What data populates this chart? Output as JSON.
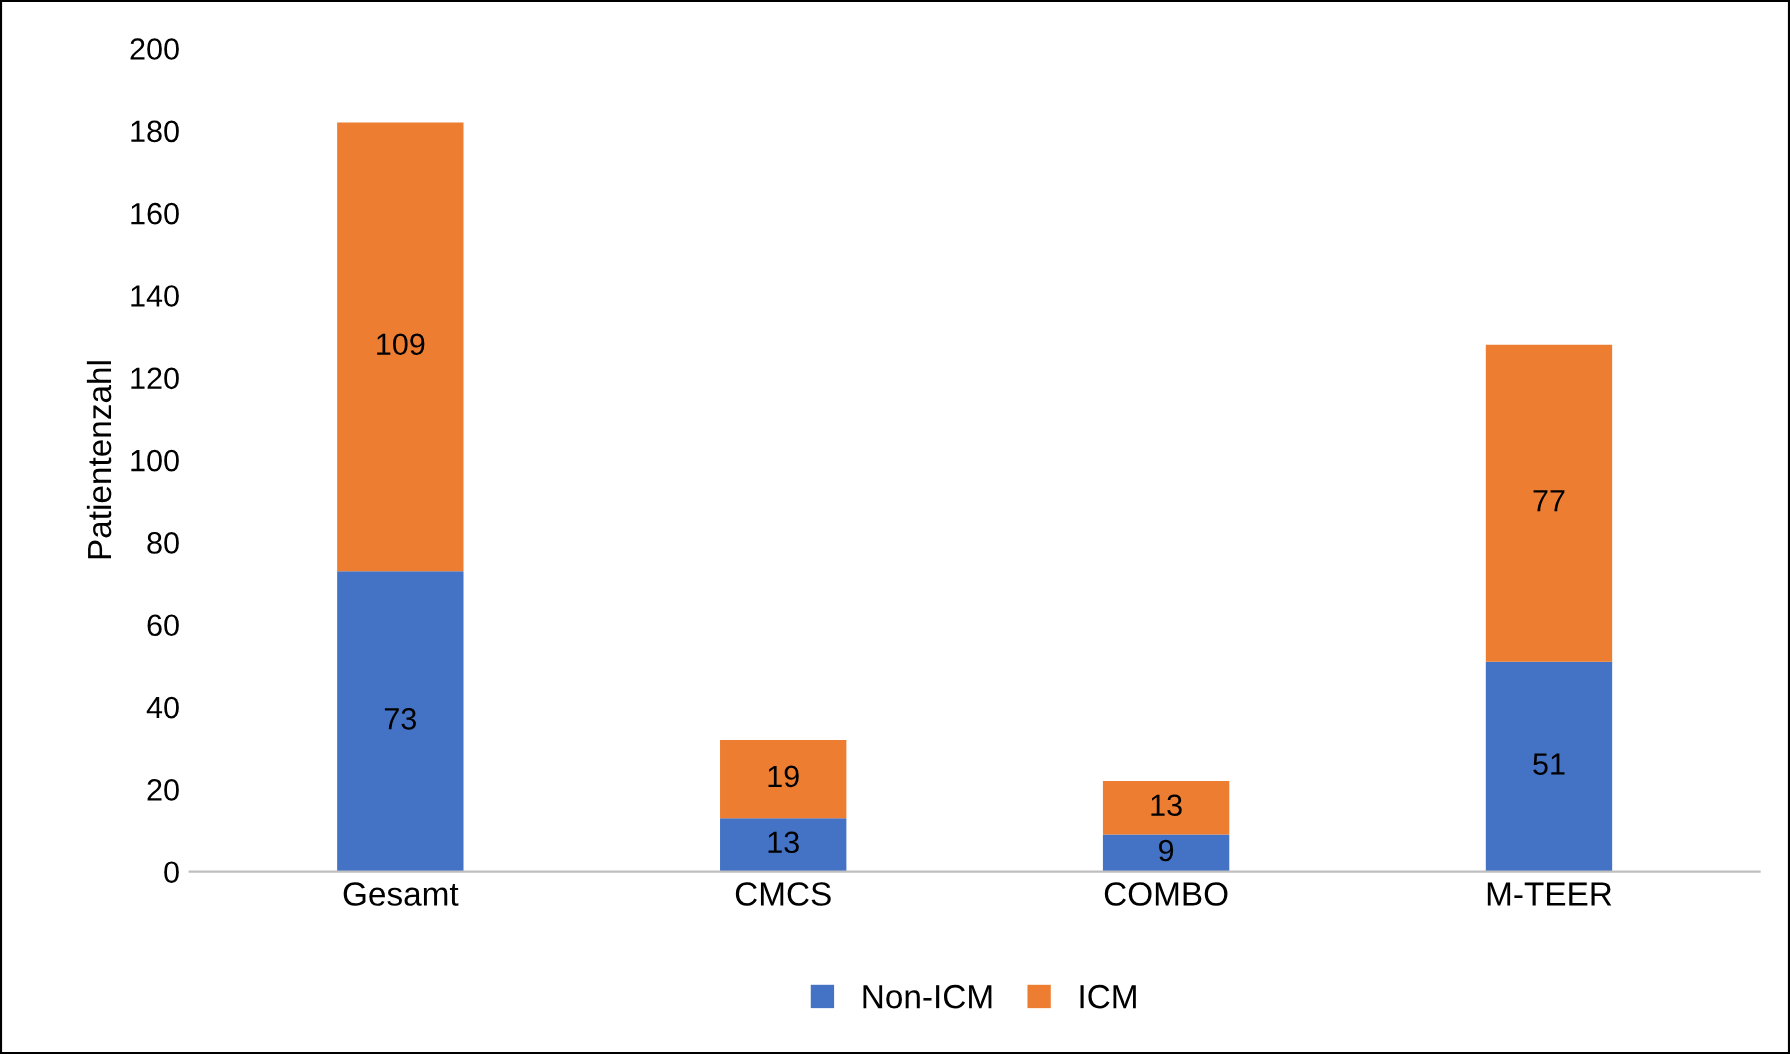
{
  "chart_data": {
    "type": "bar",
    "stacked": true,
    "ylabel": "Patientenzahl",
    "categories": [
      "Gesamt",
      "CMCS",
      "COMBO",
      "M-TEER"
    ],
    "series": [
      {
        "name": "Non-ICM",
        "color": "#4472c4",
        "values": [
          73,
          13,
          9,
          51
        ]
      },
      {
        "name": "ICM",
        "color": "#ed7d31",
        "values": [
          109,
          19,
          13,
          77
        ]
      }
    ],
    "ylim": [
      0,
      200
    ],
    "yticks": [
      0,
      20,
      40,
      60,
      80,
      100,
      120,
      140,
      160,
      180,
      200
    ],
    "data_labels": true,
    "legend": "bottom",
    "grid": false
  }
}
